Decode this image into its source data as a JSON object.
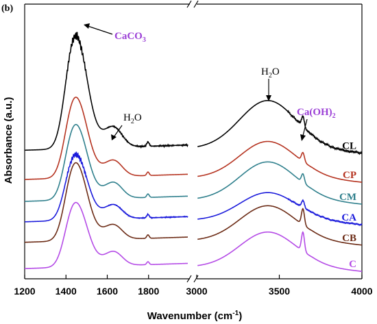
{
  "chart_data": {
    "type": "line",
    "panel_label": "(b)",
    "xlabel_main": "Wavenumber (cm",
    "xlabel_exp": "-1",
    "xlabel_close": ")",
    "ylabel": "Absorbance (a.u.)",
    "x_axis_broken": true,
    "x_segments": [
      {
        "range": [
          1200,
          2000
        ],
        "ticks": [
          1200,
          1400,
          1600,
          1800
        ]
      },
      {
        "range": [
          3000,
          4000
        ],
        "ticks": [
          3000,
          3500,
          4000
        ]
      }
    ],
    "tick_labels": [
      "1200",
      "1400",
      "1600",
      "1800",
      "3000",
      "3500",
      "4000"
    ],
    "y_ticks": "none",
    "grid": false,
    "legend": "labels at right end of each curve",
    "series": [
      {
        "name": "CL",
        "color": "#000000",
        "offset": 5.0,
        "peak1450": 4.2,
        "peak1630": 0.55,
        "peak1800": 0.15,
        "peak3430": 1.65,
        "peak3645": 0.35,
        "noise": 0.12
      },
      {
        "name": "CP",
        "color": "#b5321f",
        "offset": 4.0,
        "peak1450": 3.0,
        "peak1630": 0.45,
        "peak1800": 0.12,
        "peak3430": 1.25,
        "peak3645": 0.3,
        "noise": 0.0
      },
      {
        "name": "CM",
        "color": "#2e7f8c",
        "offset": 3.25,
        "peak1450": 2.8,
        "peak1630": 0.45,
        "peak1800": 0.12,
        "peak3430": 1.3,
        "peak3645": 0.3,
        "noise": 0.0
      },
      {
        "name": "CA",
        "color": "#1a1adb",
        "offset": 2.55,
        "peak1450": 2.45,
        "peak1630": 0.4,
        "peak1800": 0.12,
        "peak3430": 0.95,
        "peak3645": 0.25,
        "noise": 0.08
      },
      {
        "name": "CB",
        "color": "#6b2a14",
        "offset": 1.85,
        "peak1450": 2.9,
        "peak1630": 0.4,
        "peak1800": 0.12,
        "peak3430": 1.2,
        "peak3645": 0.55,
        "noise": 0.0
      },
      {
        "name": "C",
        "color": "#b44ae6",
        "offset": 0.95,
        "peak1450": 2.4,
        "peak1630": 0.4,
        "peak1800": 0.1,
        "peak3430": 1.2,
        "peak3645": 0.65,
        "noise": 0.0
      }
    ],
    "ylim": [
      0.6,
      10.0
    ],
    "annotations": {
      "caco3_main": "CaCO",
      "caco3_sub": "3",
      "h2o_left_main": "H",
      "h2o_left_sub": "2",
      "h2o_left_end": "O",
      "h2o_right_main": "H",
      "h2o_right_sub": "2",
      "h2o_right_end": "O",
      "caoh_main": "Ca(OH)",
      "caoh_sub": "2",
      "caco3_color": "#9b3fd6",
      "caoh_color": "#9b3fd6"
    }
  }
}
